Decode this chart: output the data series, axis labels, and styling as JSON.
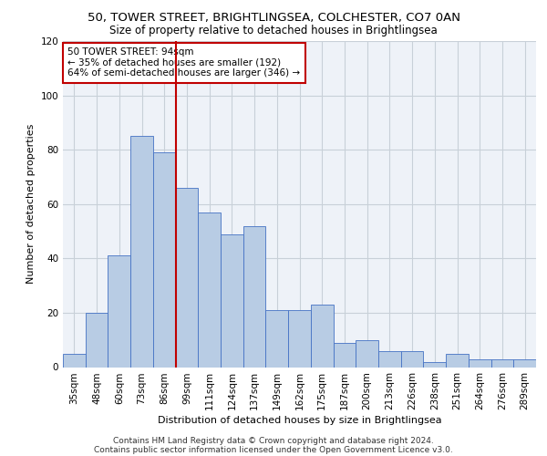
{
  "title_line1": "50, TOWER STREET, BRIGHTLINGSEA, COLCHESTER, CO7 0AN",
  "title_line2": "Size of property relative to detached houses in Brightlingsea",
  "xlabel": "Distribution of detached houses by size in Brightlingsea",
  "ylabel": "Number of detached properties",
  "categories": [
    "35sqm",
    "48sqm",
    "60sqm",
    "73sqm",
    "86sqm",
    "99sqm",
    "111sqm",
    "124sqm",
    "137sqm",
    "149sqm",
    "162sqm",
    "175sqm",
    "187sqm",
    "200sqm",
    "213sqm",
    "226sqm",
    "238sqm",
    "251sqm",
    "264sqm",
    "276sqm",
    "289sqm"
  ],
  "values": [
    5,
    20,
    41,
    85,
    79,
    66,
    57,
    49,
    52,
    21,
    21,
    23,
    9,
    10,
    6,
    6,
    2,
    5,
    3,
    3,
    3
  ],
  "bar_color": "#b8cce4",
  "bar_edge_color": "#4472c4",
  "vline_bin_index": 4.5,
  "vline_color": "#c00000",
  "annotation_text": "50 TOWER STREET: 94sqm\n← 35% of detached houses are smaller (192)\n64% of semi-detached houses are larger (346) →",
  "annotation_box_color": "#ffffff",
  "annotation_box_edge_color": "#c00000",
  "ylim": [
    0,
    120
  ],
  "yticks": [
    0,
    20,
    40,
    60,
    80,
    100,
    120
  ],
  "grid_color": "#c8d0d8",
  "footnote1": "Contains HM Land Registry data © Crown copyright and database right 2024.",
  "footnote2": "Contains public sector information licensed under the Open Government Licence v3.0.",
  "bg_color": "#eef2f8",
  "title_fontsize": 9.5,
  "subtitle_fontsize": 8.5,
  "axis_label_fontsize": 8,
  "tick_fontsize": 7.5,
  "annotation_fontsize": 7.5,
  "footnote_fontsize": 6.5
}
